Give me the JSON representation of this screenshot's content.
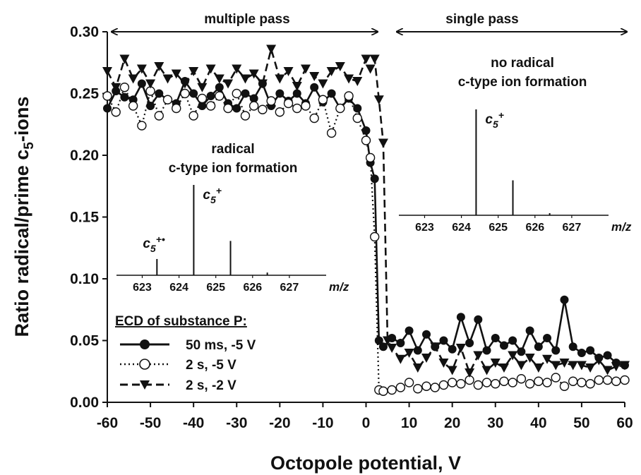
{
  "chart_data": {
    "type": "line",
    "xlabel": "Octopole potential, V",
    "ylabel": "Ratio radical/prime c",
    "ylabel_sub": "5",
    "ylabel_suffix": "-ions",
    "xlim": [
      -60,
      60
    ],
    "ylim": [
      0,
      0.3
    ],
    "xticks": [
      "-60",
      "-50",
      "-40",
      "-30",
      "-20",
      "-10",
      "0",
      "10",
      "20",
      "30",
      "40",
      "50",
      "60"
    ],
    "yticks": [
      "0.00",
      "0.05",
      "0.10",
      "0.15",
      "0.20",
      "0.25",
      "0.30"
    ],
    "regions": [
      {
        "label": "multiple pass",
        "x_from": -60,
        "x_to": 3
      },
      {
        "label": "single pass",
        "x_from": 5,
        "x_to": 60
      }
    ],
    "legend": {
      "title": "ECD of substance P:",
      "entries": [
        "50 ms, -5 V",
        "2 s, -5 V",
        "2 s, -2 V"
      ]
    },
    "series": [
      {
        "name": "50 ms, -5 V",
        "line": "solid",
        "marker": "filled-circle",
        "x": [
          -60,
          -58,
          -56,
          -54,
          -52,
          -50,
          -48,
          -46,
          -44,
          -42,
          -40,
          -38,
          -36,
          -34,
          -32,
          -30,
          -28,
          -26,
          -24,
          -22,
          -20,
          -18,
          -16,
          -14,
          -12,
          -10,
          -8,
          -6,
          -4,
          -2,
          0,
          1,
          2,
          3,
          4,
          6,
          8,
          10,
          12,
          14,
          16,
          18,
          20,
          22,
          24,
          26,
          28,
          30,
          32,
          34,
          36,
          38,
          40,
          42,
          44,
          46,
          48,
          50,
          52,
          54,
          56,
          58,
          60
        ],
        "y": [
          0.238,
          0.252,
          0.247,
          0.245,
          0.258,
          0.24,
          0.25,
          0.245,
          0.242,
          0.26,
          0.25,
          0.24,
          0.248,
          0.255,
          0.242,
          0.238,
          0.25,
          0.246,
          0.258,
          0.24,
          0.25,
          0.244,
          0.25,
          0.242,
          0.255,
          0.243,
          0.25,
          0.238,
          0.246,
          0.238,
          0.22,
          0.194,
          0.181,
          0.05,
          0.045,
          0.052,
          0.048,
          0.058,
          0.042,
          0.055,
          0.045,
          0.05,
          0.043,
          0.069,
          0.048,
          0.067,
          0.042,
          0.052,
          0.046,
          0.05,
          0.041,
          0.058,
          0.045,
          0.052,
          0.042,
          0.083,
          0.045,
          0.04,
          0.042,
          0.036,
          0.038,
          0.032,
          0.03
        ]
      },
      {
        "name": "2 s, -5 V",
        "line": "dotted",
        "marker": "open-circle",
        "x": [
          -60,
          -58,
          -56,
          -54,
          -52,
          -50,
          -48,
          -46,
          -44,
          -42,
          -40,
          -38,
          -36,
          -34,
          -32,
          -30,
          -28,
          -26,
          -24,
          -22,
          -20,
          -18,
          -16,
          -14,
          -12,
          -10,
          -8,
          -6,
          -4,
          -2,
          0,
          1,
          2,
          3,
          4,
          6,
          8,
          10,
          12,
          14,
          16,
          18,
          20,
          22,
          24,
          26,
          28,
          30,
          32,
          34,
          36,
          38,
          40,
          42,
          44,
          46,
          48,
          50,
          52,
          54,
          56,
          58,
          60
        ],
        "y": [
          0.248,
          0.235,
          0.255,
          0.24,
          0.224,
          0.252,
          0.232,
          0.245,
          0.238,
          0.25,
          0.232,
          0.246,
          0.24,
          0.248,
          0.238,
          0.25,
          0.232,
          0.24,
          0.237,
          0.244,
          0.235,
          0.242,
          0.238,
          0.24,
          0.23,
          0.245,
          0.218,
          0.238,
          0.248,
          0.23,
          0.212,
          0.198,
          0.134,
          0.01,
          0.009,
          0.01,
          0.012,
          0.016,
          0.011,
          0.013,
          0.012,
          0.014,
          0.016,
          0.015,
          0.018,
          0.014,
          0.016,
          0.015,
          0.017,
          0.016,
          0.019,
          0.015,
          0.017,
          0.016,
          0.02,
          0.013,
          0.017,
          0.016,
          0.015,
          0.018,
          0.018,
          0.017,
          0.018
        ]
      },
      {
        "name": "2 s, -2 V",
        "line": "dashed",
        "marker": "filled-triangle-down",
        "x": [
          -60,
          -58,
          -56,
          -54,
          -52,
          -50,
          -48,
          -46,
          -44,
          -42,
          -40,
          -38,
          -36,
          -34,
          -32,
          -30,
          -28,
          -26,
          -24,
          -22,
          -20,
          -18,
          -16,
          -14,
          -12,
          -10,
          -8,
          -6,
          -4,
          -2,
          0,
          1,
          2,
          3,
          4,
          5,
          6,
          8,
          10,
          12,
          14,
          16,
          18,
          20,
          22,
          24,
          26,
          28,
          30,
          32,
          34,
          36,
          38,
          40,
          42,
          44,
          46,
          48,
          50,
          52,
          54,
          56,
          58,
          60
        ],
        "y": [
          0.268,
          0.255,
          0.278,
          0.262,
          0.27,
          0.258,
          0.272,
          0.262,
          0.266,
          0.258,
          0.268,
          0.255,
          0.27,
          0.262,
          0.258,
          0.27,
          0.262,
          0.266,
          0.258,
          0.286,
          0.262,
          0.268,
          0.256,
          0.27,
          0.264,
          0.258,
          0.268,
          0.272,
          0.262,
          0.26,
          0.278,
          0.27,
          0.278,
          0.245,
          0.21,
          0.05,
          0.044,
          0.035,
          0.04,
          0.028,
          0.036,
          0.045,
          0.032,
          0.026,
          0.044,
          0.024,
          0.038,
          0.026,
          0.032,
          0.028,
          0.038,
          0.03,
          0.036,
          0.028,
          0.035,
          0.03,
          0.032,
          0.03,
          0.03,
          0.028,
          0.034,
          0.026,
          0.029,
          0.03
        ]
      }
    ],
    "insets": [
      {
        "annotation_line1": "radical",
        "annotation_line2": "c-type ion formation",
        "x_ticks": [
          "623",
          "624",
          "625",
          "626",
          "627"
        ],
        "x_label": "m/z",
        "peak_labels": [
          {
            "text": "c",
            "sub": "5",
            "sup": "+•",
            "mz": 623.4
          },
          {
            "text": "c",
            "sub": "5",
            "sup": "+",
            "mz": 624.4
          }
        ],
        "peaks": [
          {
            "mz": 623.4,
            "intensity": 0.18
          },
          {
            "mz": 624.4,
            "intensity": 1.0
          },
          {
            "mz": 625.4,
            "intensity": 0.38
          },
          {
            "mz": 626.4,
            "intensity": 0.03
          }
        ]
      },
      {
        "annotation_line1": "no radical",
        "annotation_line2": "c-type ion formation",
        "x_ticks": [
          "623",
          "624",
          "625",
          "626",
          "627"
        ],
        "x_label": "m/z",
        "peak_labels": [
          {
            "text": "c",
            "sub": "5",
            "sup": "+",
            "mz": 624.4
          }
        ],
        "peaks": [
          {
            "mz": 624.4,
            "intensity": 1.0
          },
          {
            "mz": 625.4,
            "intensity": 0.33
          },
          {
            "mz": 626.4,
            "intensity": 0.02
          }
        ]
      }
    ]
  }
}
